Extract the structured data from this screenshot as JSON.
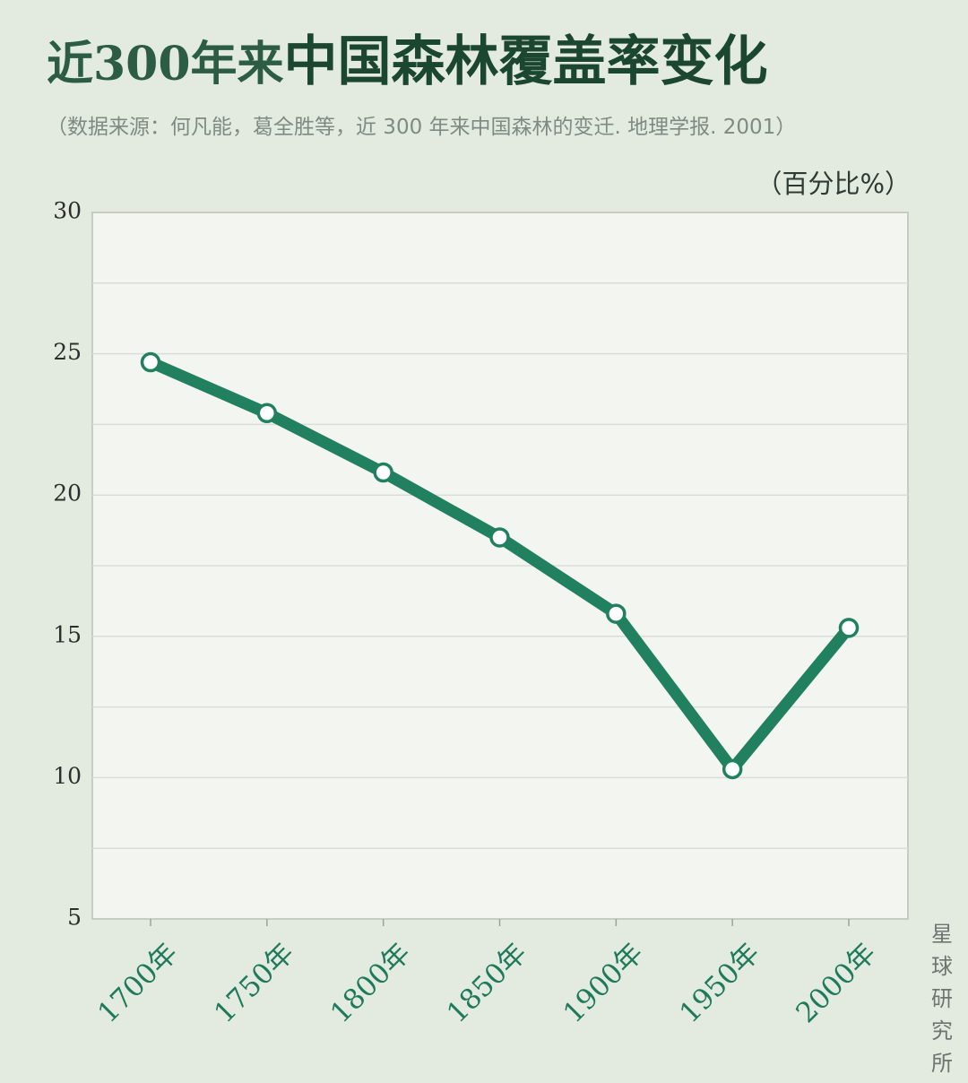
{
  "header": {
    "title_prefix": "近300年来",
    "title_main": "中国森林覆盖率变化",
    "source": "（数据来源：何凡能，葛全胜等，近 300 年来中国森林的变迁. 地理学报. 2001）",
    "unit": "（百分比%）"
  },
  "brand": {
    "chars": [
      "星",
      "球",
      "研",
      "究",
      "所"
    ]
  },
  "colors": {
    "background": "#e3eae0",
    "plot_bg": "#f3f5f1",
    "line": "#21805f",
    "title": "#1b4630",
    "axis_label": "#1e7a5a"
  },
  "chart_data": {
    "type": "line",
    "title": "近300年来中国森林覆盖率变化",
    "ylabel": "（百分比%）",
    "categories": [
      "1700年",
      "1750年",
      "1800年",
      "1850年",
      "1900年",
      "1950年",
      "2000年"
    ],
    "series": [
      {
        "values": [
          24.7,
          22.9,
          20.8,
          18.5,
          15.8,
          10.3,
          15.3
        ]
      }
    ],
    "ylim": [
      5,
      30
    ],
    "yticks": [
      5,
      10,
      15,
      20,
      25,
      30
    ],
    "grid": true,
    "legend": "none"
  }
}
